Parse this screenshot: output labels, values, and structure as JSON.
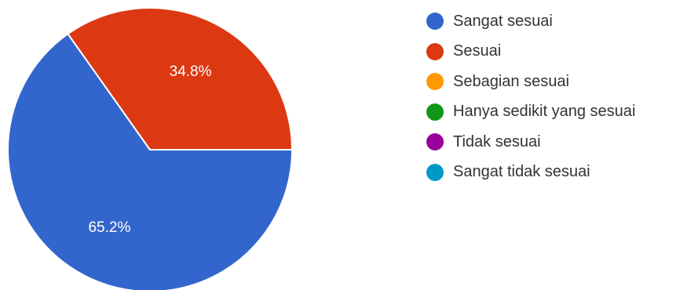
{
  "chart_data": {
    "type": "pie",
    "slices": [
      {
        "label": "Sangat sesuai",
        "value": 65.2,
        "display": "65.2%",
        "color": "#3366cc"
      },
      {
        "label": "Sesuai",
        "value": 34.8,
        "display": "34.8%",
        "color": "#dc3912"
      },
      {
        "label": "Sebagian sesuai",
        "value": 0,
        "display": "",
        "color": "#ff9900"
      },
      {
        "label": "Hanya sedikit yang sesuai",
        "value": 0,
        "display": "",
        "color": "#109618"
      },
      {
        "label": "Tidak sesuai",
        "value": 0,
        "display": "",
        "color": "#990099"
      },
      {
        "label": "Sangat tidak sesuai",
        "value": 0,
        "display": "",
        "color": "#0099c6"
      }
    ],
    "legend_position": "right"
  }
}
